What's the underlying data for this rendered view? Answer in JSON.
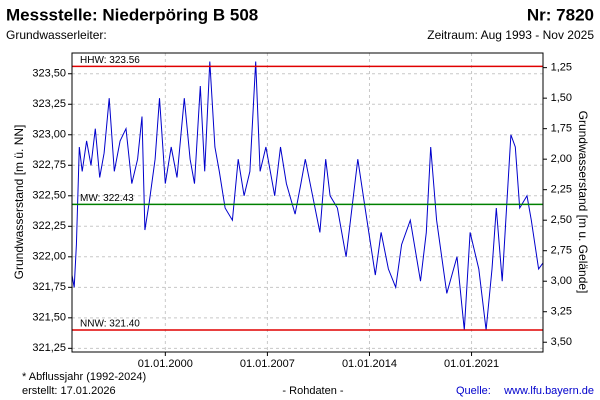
{
  "chart_data": {
    "type": "line",
    "title": "Messstelle: Niederpöring B 508",
    "number": "Nr: 7820",
    "subtitle_left": "Grundwasserleiter:",
    "subtitle_right": "Zeitraum: Aug 1993 - Nov 2025",
    "ylabel": "Grundwasserstand [m ü. NN]",
    "y2label": "Grundwasserstand [m u. Gelände]",
    "footnote": "* Abflussjahr (1992-2024)",
    "created": "erstellt:  17.01.2026",
    "data_note": "- Rohdaten -",
    "source_label": "Quelle:",
    "source_link": "www.lfu.bayern.de",
    "xlim": [
      1993.6,
      2025.9
    ],
    "xticks": [
      {
        "value": 2000,
        "label": "01.01.2000"
      },
      {
        "value": 2007,
        "label": "01.01.2007"
      },
      {
        "value": 2014,
        "label": "01.01.2014"
      },
      {
        "value": 2021,
        "label": "01.01.2021"
      }
    ],
    "ylim": [
      321.22,
      323.67
    ],
    "yticks": [
      {
        "value": 321.25,
        "label": "321,25"
      },
      {
        "value": 321.5,
        "label": "321,50"
      },
      {
        "value": 321.75,
        "label": "321,75"
      },
      {
        "value": 322,
        "label": "322,00"
      },
      {
        "value": 322.25,
        "label": "322,25"
      },
      {
        "value": 322.5,
        "label": "322,50"
      },
      {
        "value": 322.75,
        "label": "322,75"
      },
      {
        "value": 323,
        "label": "323,00"
      },
      {
        "value": 323.25,
        "label": "323,25"
      },
      {
        "value": 323.5,
        "label": "323,50"
      }
    ],
    "y2lim": [
      3.58,
      1.13
    ],
    "y2ticks": [
      {
        "value": 1.25,
        "label": "1,25"
      },
      {
        "value": 1.5,
        "label": "1,50"
      },
      {
        "value": 1.75,
        "label": "1,75"
      },
      {
        "value": 2,
        "label": "2,00"
      },
      {
        "value": 2.25,
        "label": "2,25"
      },
      {
        "value": 2.5,
        "label": "2,50"
      },
      {
        "value": 2.75,
        "label": "2,75"
      },
      {
        "value": 3,
        "label": "3,00"
      },
      {
        "value": 3.25,
        "label": "3,25"
      },
      {
        "value": 3.5,
        "label": "3,50"
      }
    ],
    "grid": true,
    "reference_lines": [
      {
        "label": "HHW: 323.56",
        "value": 323.56,
        "color": "#e00000"
      },
      {
        "label": "MW: 322.43",
        "value": 322.43,
        "color": "#008000"
      },
      {
        "label": "NNW: 321.40",
        "value": 321.4,
        "color": "#e00000"
      }
    ],
    "series": [
      {
        "name": "Grundwasserstand",
        "color": "#0000cc",
        "x": [
          1993.6,
          1993.75,
          1993.9,
          1994.1,
          1994.3,
          1994.6,
          1994.9,
          1995.2,
          1995.5,
          1995.8,
          1996.15,
          1996.5,
          1996.9,
          1997.3,
          1997.7,
          1998.1,
          1998.4,
          1998.6,
          1998.9,
          1999.3,
          1999.6,
          2000.0,
          2000.4,
          2000.8,
          2001.3,
          2001.7,
          2002.0,
          2002.4,
          2002.7,
          2003.05,
          2003.4,
          2003.7,
          2004.1,
          2004.6,
          2005.0,
          2005.4,
          2005.8,
          2006.2,
          2006.5,
          2006.9,
          2007.5,
          2007.9,
          2008.3,
          2008.9,
          2009.3,
          2009.6,
          2010.1,
          2010.6,
          2011.0,
          2011.3,
          2011.8,
          2012.4,
          2012.7,
          2013.2,
          2013.7,
          2014.4,
          2014.8,
          2015.3,
          2015.8,
          2016.2,
          2016.8,
          2017.5,
          2017.9,
          2018.2,
          2018.6,
          2019.3,
          2020.0,
          2020.5,
          2020.9,
          2021.5,
          2022.0,
          2022.4,
          2022.7,
          2023.1,
          2023.7,
          2024.0,
          2024.3,
          2024.8,
          2025.1,
          2025.6,
          2025.9
        ],
        "values": [
          321.85,
          321.75,
          322.1,
          322.9,
          322.7,
          322.95,
          322.75,
          323.05,
          322.65,
          322.85,
          323.3,
          322.7,
          322.95,
          323.05,
          322.6,
          322.8,
          323.15,
          322.22,
          322.45,
          322.8,
          323.3,
          322.6,
          322.9,
          322.65,
          323.3,
          322.8,
          322.6,
          323.4,
          322.7,
          323.6,
          322.9,
          322.7,
          322.4,
          322.3,
          322.8,
          322.5,
          322.7,
          323.6,
          322.7,
          322.9,
          322.5,
          322.9,
          322.6,
          322.35,
          322.6,
          322.8,
          322.5,
          322.2,
          322.8,
          322.5,
          322.4,
          322.0,
          322.3,
          322.8,
          322.4,
          321.85,
          322.2,
          321.9,
          321.75,
          322.1,
          322.3,
          321.8,
          322.2,
          322.9,
          322.3,
          321.7,
          322.0,
          321.4,
          322.2,
          321.9,
          321.4,
          321.9,
          322.4,
          321.8,
          323.0,
          322.9,
          322.4,
          322.5,
          322.3,
          321.9,
          321.95
        ]
      }
    ]
  }
}
